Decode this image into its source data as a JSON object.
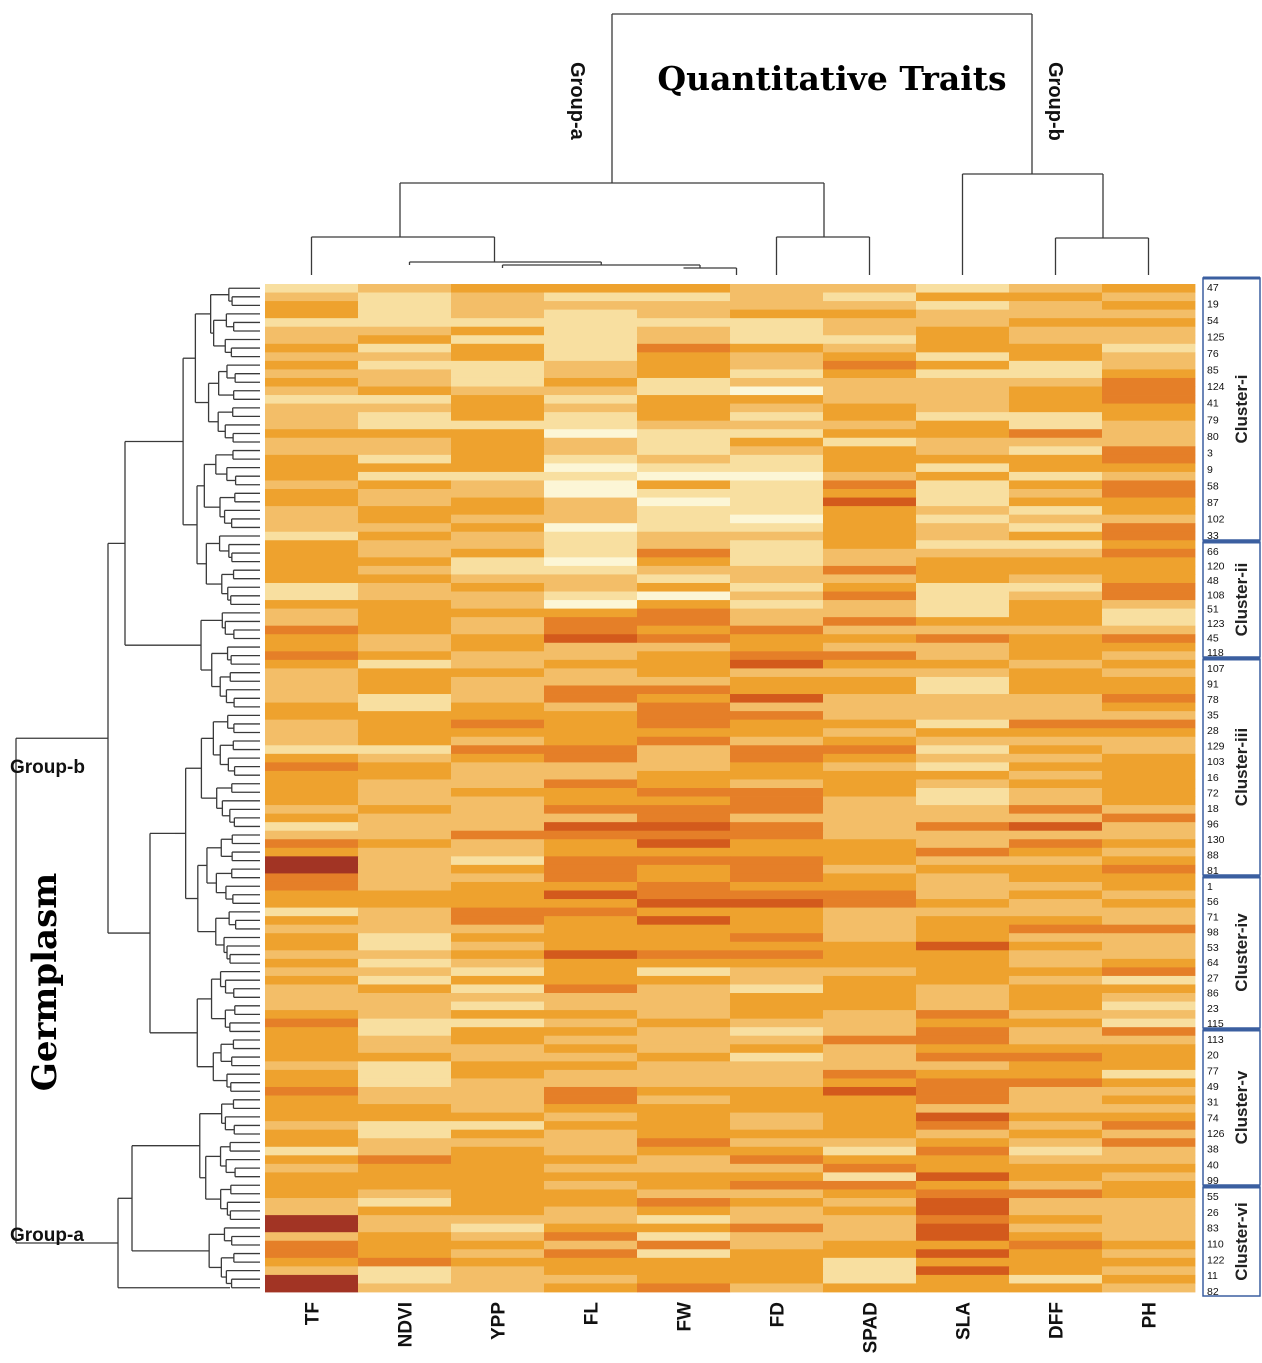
{
  "chart_data": {
    "type": "heatmap",
    "title": "Quantitative Traits",
    "row_axis_title": "Germplasm",
    "column_groups": [
      "Group-a",
      "Group-b"
    ],
    "row_groups": [
      "Group-b",
      "Group-a"
    ],
    "columns": [
      "TF",
      "NDVI",
      "YPP",
      "FL",
      "FW",
      "FD",
      "SPAD",
      "SLA",
      "DFF",
      "PH"
    ],
    "clusters": [
      {
        "name": "Cluster-i",
        "labels": [
          "47",
          "19",
          "54",
          "125",
          "76",
          "85",
          "124",
          "41",
          "79",
          "80",
          "3",
          "9",
          "58",
          "87",
          "102",
          "33"
        ]
      },
      {
        "name": "Cluster-ii",
        "labels": [
          "66",
          "120",
          "48",
          "108",
          "51",
          "123",
          "45",
          "118"
        ]
      },
      {
        "name": "Cluster-iii",
        "labels": [
          "107",
          "91",
          "78",
          "35",
          "28",
          "129",
          "103",
          "16",
          "72",
          "18",
          "96",
          "130",
          "88",
          "81"
        ]
      },
      {
        "name": "Cluster-iv",
        "labels": [
          "1",
          "56",
          "71",
          "98",
          "53",
          "64",
          "27",
          "86",
          "23",
          "115"
        ]
      },
      {
        "name": "Cluster-v",
        "labels": [
          "113",
          "20",
          "77",
          "49",
          "31",
          "74",
          "126",
          "38",
          "40",
          "99"
        ]
      },
      {
        "name": "Cluster-vi",
        "labels": [
          "55",
          "26",
          "83",
          "110",
          "122",
          "11",
          "82"
        ]
      }
    ],
    "colors": {
      "scale": [
        "#fcf6d6",
        "#f8dfa0",
        "#f3be68",
        "#eea22e",
        "#e57f28",
        "#d35a1c",
        "#a23424",
        "#6a1c2a"
      ],
      "line": "#3a3a3a",
      "cluster_box": "#3b5fa0"
    }
  }
}
